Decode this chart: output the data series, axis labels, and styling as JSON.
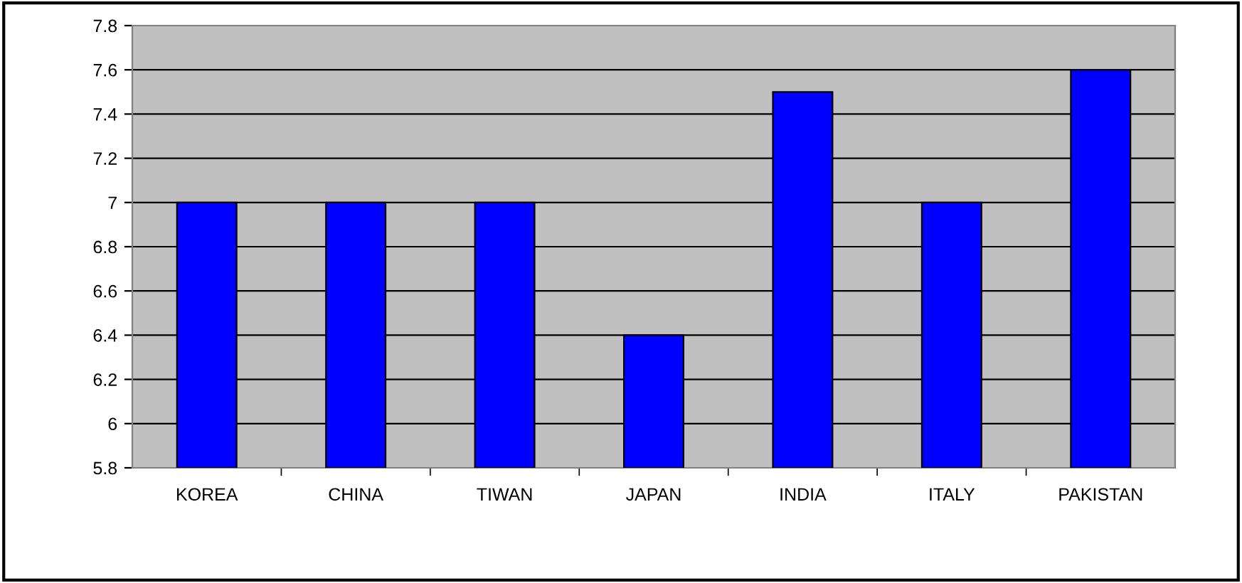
{
  "chart_data": {
    "type": "bar",
    "categories": [
      "KOREA",
      "CHINA",
      "TIWAN",
      "JAPAN",
      "INDIA",
      "ITALY",
      "PAKISTAN"
    ],
    "values": [
      7,
      7,
      7,
      6.4,
      7.5,
      7,
      7.6
    ],
    "color": "#0000ff",
    "ylim": [
      5.8,
      7.8
    ],
    "yticks": [
      5.8,
      6,
      6.2,
      6.4,
      6.6,
      6.8,
      7,
      7.2,
      7.4,
      7.6,
      7.8
    ],
    "grid": "y",
    "legend": false
  }
}
